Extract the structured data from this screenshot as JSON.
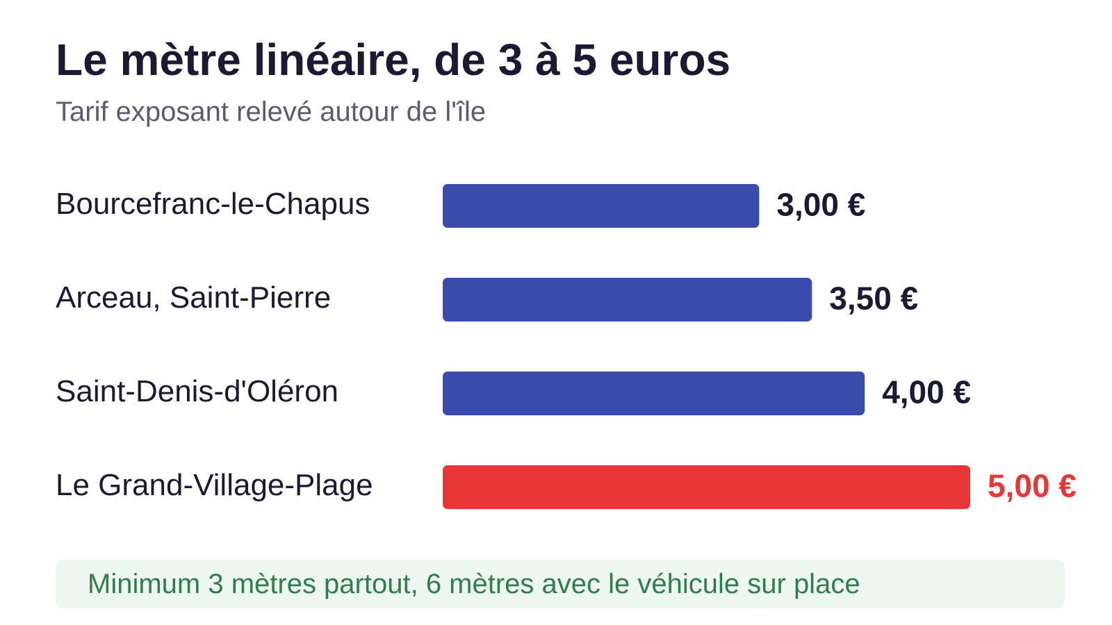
{
  "header": {
    "title": "Le mètre linéaire, de 3 à 5 euros",
    "subtitle": "Tarif exposant relevé autour de l'île"
  },
  "chart_data": {
    "type": "bar",
    "orientation": "horizontal",
    "categories": [
      "Bourcefranc-le-Chapus",
      "Arceau, Saint-Pierre",
      "Saint-Denis-d'Oléron",
      "Le Grand-Village-Plage"
    ],
    "values": [
      3.0,
      3.5,
      4.0,
      5.0
    ],
    "value_labels": [
      "3,00 €",
      "3,50 €",
      "4,00 €",
      "5,00 €"
    ],
    "highlight_index": 3,
    "xlim": [
      0,
      5
    ],
    "grid": false,
    "colors": {
      "bar": "#3b4bab",
      "highlight": "#e83535",
      "label": "#1b1a33"
    }
  },
  "note": {
    "text": "Minimum 3 mètres partout, 6 mètres avec le véhicule sur place"
  }
}
